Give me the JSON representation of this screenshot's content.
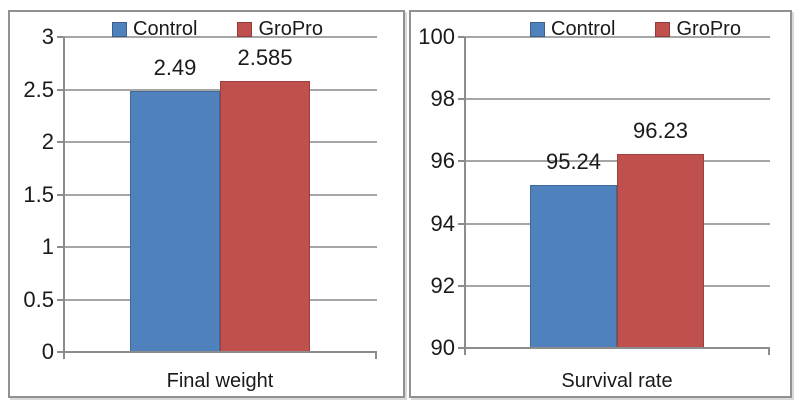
{
  "colors": {
    "control": "#4F81BD",
    "gropro": "#C0504D",
    "gridline": "#A6A6A6",
    "axis": "#8C8C8C",
    "panel_border": "#919191",
    "text": "#1A1A1A"
  },
  "chart_data": [
    {
      "type": "bar",
      "title": "",
      "categories": [
        "Final weight"
      ],
      "series": [
        {
          "name": "Control",
          "values": [
            2.49
          ],
          "labels": [
            "2.49"
          ],
          "color": "#4F81BD"
        },
        {
          "name": "GroPro",
          "values": [
            2.585
          ],
          "labels": [
            "2.585"
          ],
          "color": "#C0504D"
        }
      ],
      "xlabel": "Final weight",
      "ylabel": "",
      "ylim": [
        0,
        3
      ],
      "yticks": [
        3,
        2.5,
        2,
        1.5,
        1,
        0.5,
        0
      ],
      "ytick_labels": [
        "3",
        "2.5",
        "2",
        "1.5",
        "1",
        "0.5",
        "0"
      ],
      "legend": [
        "Control",
        "GroPro"
      ],
      "legend_position": "top",
      "grid": true
    },
    {
      "type": "bar",
      "title": "",
      "categories": [
        "Survival rate"
      ],
      "series": [
        {
          "name": "Control",
          "values": [
            95.24
          ],
          "labels": [
            "95.24"
          ],
          "color": "#4F81BD"
        },
        {
          "name": "GroPro",
          "values": [
            96.23
          ],
          "labels": [
            "96.23"
          ],
          "color": "#C0504D"
        }
      ],
      "xlabel": "Survival rate",
      "ylabel": "",
      "ylim": [
        90,
        100
      ],
      "yticks": [
        100,
        98,
        96,
        94,
        92,
        90
      ],
      "ytick_labels": [
        "100",
        "98",
        "96",
        "94",
        "92",
        "90"
      ],
      "legend": [
        "Control",
        "GroPro"
      ],
      "legend_position": "top",
      "grid": true
    }
  ]
}
